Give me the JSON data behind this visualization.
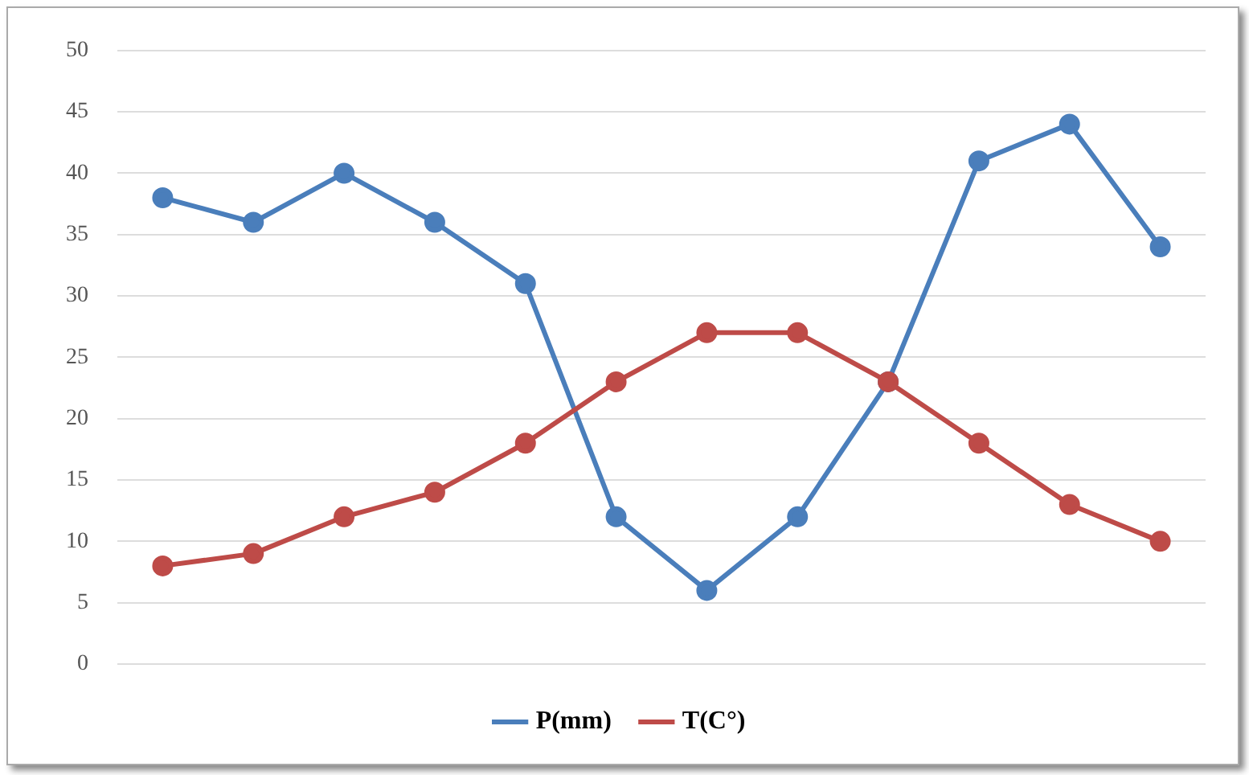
{
  "chart_data": {
    "type": "line",
    "categories": [
      null,
      null,
      null,
      null,
      null,
      null,
      null,
      null,
      null,
      null,
      null,
      null
    ],
    "series": [
      {
        "name": "P(mm)",
        "color": "#4a7ebb",
        "values": [
          38,
          36,
          40,
          36,
          31,
          12,
          6,
          12,
          23,
          41,
          44,
          34
        ]
      },
      {
        "name": "T(C°)",
        "color": "#be4b48",
        "values": [
          8,
          9,
          12,
          14,
          18,
          23,
          27,
          27,
          23,
          18,
          13,
          10
        ]
      }
    ],
    "ylim": [
      0,
      50
    ],
    "yticks": [
      0,
      5,
      10,
      15,
      20,
      25,
      30,
      35,
      40,
      45,
      50
    ],
    "grid": "y",
    "legend": "bottom",
    "marker": "circle",
    "line_style": "solid",
    "tick_labels": "y"
  }
}
